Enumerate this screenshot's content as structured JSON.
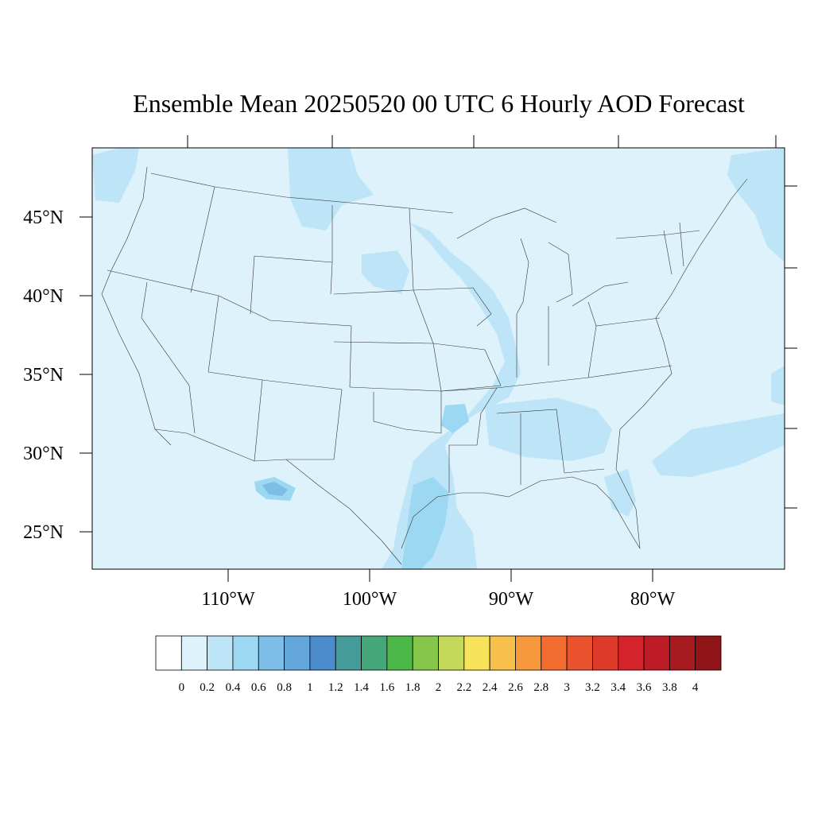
{
  "title": "Ensemble Mean 20250520 00 UTC 6 Hourly AOD Forecast",
  "lat_labels": [
    "45°N",
    "40°N",
    "35°N",
    "30°N",
    "25°N"
  ],
  "lon_labels": [
    "110°W",
    "100°W",
    "90°W",
    "80°W"
  ],
  "colorbar": {
    "labels": [
      "0",
      "0.2",
      "0.4",
      "0.6",
      "0.8",
      "1",
      "1.2",
      "1.4",
      "1.6",
      "1.8",
      "2",
      "2.2",
      "2.4",
      "2.6",
      "2.8",
      "3",
      "3.2",
      "3.4",
      "3.6",
      "3.8",
      "4"
    ],
    "colors": [
      "#ffffff",
      "#def2fb",
      "#bde5f7",
      "#9dd8f3",
      "#7dbde6",
      "#62a6da",
      "#4a8ccc",
      "#459a9a",
      "#45a67a",
      "#4cb84a",
      "#86c64b",
      "#c4d85a",
      "#f7e35a",
      "#f7c04a",
      "#f7983c",
      "#f36c30",
      "#e8522d",
      "#de3a2a",
      "#d4232a",
      "#bd1b25",
      "#a71a20",
      "#8f1519"
    ]
  },
  "field": {
    "background_level": "0-0.2",
    "hotspot_level": "0.6-0.8"
  },
  "colors": {
    "level_0_2": "#def2fb",
    "level_0_4": "#bde5f7",
    "level_0_6": "#9dd8f3",
    "level_0_8": "#7dbde6"
  }
}
